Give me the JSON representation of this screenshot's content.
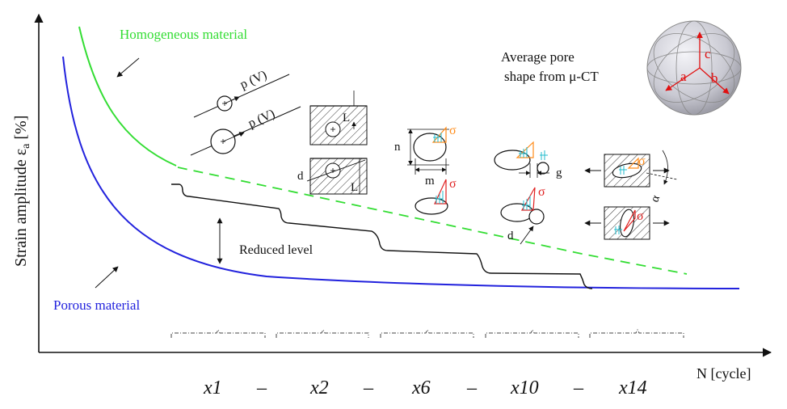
{
  "axes": {
    "y_label_main": "Strain amplitude ",
    "y_label_symbol": "ε",
    "y_label_sub": "a",
    "y_label_unit": " [%]",
    "x_label": "N [cycle]"
  },
  "curves": {
    "homogeneous": {
      "label": "Homogeneous material",
      "color": "#33dd33"
    },
    "porous": {
      "label": "Porous material",
      "color": "#2222dd"
    }
  },
  "annotations": {
    "reduced_level": "Reduced level",
    "pore_title_line1": "Average pore",
    "pore_title_line2": "shape from μ-CT",
    "pv_label": "p (V)",
    "sigma": "σ",
    "L": "L",
    "d": "d",
    "n": "n",
    "m": "m",
    "g": "g",
    "alpha": "α",
    "axis_a": "a",
    "axis_b": "b",
    "axis_c": "c"
  },
  "multipliers": [
    "x1",
    "x2",
    "x6",
    "x10",
    "x14"
  ],
  "dash": "–",
  "colors": {
    "sigma_orange": "#ff8c1a",
    "sigma_red": "#e02020",
    "hatch_cyan": "#22bbcc",
    "pore_axis_red": "#e01010"
  }
}
